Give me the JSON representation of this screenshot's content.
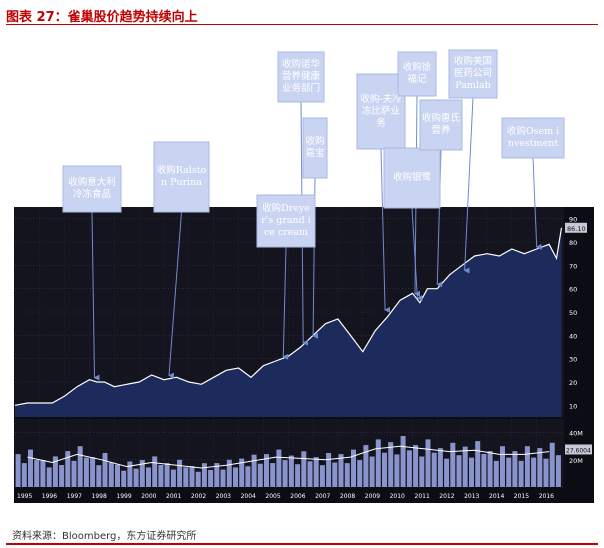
{
  "title": "图表 27：雀巢股价趋势持续向上",
  "source": "资料来源：Bloomberg，东方证券研究所",
  "colors": {
    "title": "#c00000",
    "plot_bg": "#14141e",
    "area": "#1c2a5c",
    "price_line": "#ffffff",
    "volume_bar": "#8a94cc",
    "callout_bg": "#c9d4f2",
    "arrow": "#6f8bd0"
  },
  "chart_data": {
    "type": "area",
    "x_ticks": [
      "1995",
      "1996",
      "1997",
      "1998",
      "1999",
      "2000",
      "2001",
      "2002",
      "2003",
      "2004",
      "2005",
      "2006",
      "2007",
      "2008",
      "2009",
      "2010",
      "2011",
      "2012",
      "2013",
      "2014",
      "2015",
      "2016"
    ],
    "price_axis": {
      "ticks": [
        10,
        20,
        30,
        40,
        50,
        60,
        70,
        80,
        90
      ],
      "ylim": [
        5,
        95
      ]
    },
    "last_price_label": "86.10",
    "volume_axis": {
      "ticks": [
        "40M",
        "20M"
      ],
      "ylim": [
        0,
        50
      ],
      "last_label": "27.6004"
    },
    "price_series": {
      "x": [
        1995.0,
        1995.5,
        1996.0,
        1996.5,
        1997.0,
        1997.5,
        1998.0,
        1998.3,
        1998.6,
        1999.0,
        1999.5,
        2000.0,
        2000.5,
        2001.0,
        2001.5,
        2002.0,
        2002.5,
        2003.0,
        2003.5,
        2004.0,
        2004.5,
        2005.0,
        2005.5,
        2006.0,
        2006.5,
        2007.0,
        2007.5,
        2008.0,
        2008.5,
        2009.0,
        2009.5,
        2010.0,
        2010.5,
        2011.0,
        2011.3,
        2011.6,
        2012.0,
        2012.5,
        2013.0,
        2013.5,
        2014.0,
        2014.5,
        2015.0,
        2015.5,
        2016.0,
        2016.5,
        2016.8,
        2017.0
      ],
      "y": [
        10,
        11,
        11,
        11,
        14,
        18,
        21,
        20,
        20,
        18,
        19,
        20,
        23,
        21,
        22,
        20,
        19,
        22,
        25,
        26,
        22,
        27,
        29,
        31,
        35,
        40,
        45,
        47,
        40,
        33,
        42,
        48,
        55,
        58,
        54,
        60,
        60,
        66,
        70,
        74,
        75,
        74,
        77,
        75,
        77,
        79,
        73,
        86.1
      ]
    },
    "volume_series": {
      "x": [
        1995,
        1996,
        1997,
        1998,
        1999,
        2000,
        2001,
        2002,
        2003,
        2004,
        2005,
        2006,
        2007,
        2008,
        2009,
        2010,
        2011,
        2012,
        2013,
        2014,
        2015,
        2016
      ],
      "y": [
        22,
        18,
        24,
        20,
        15,
        18,
        16,
        14,
        16,
        19,
        22,
        21,
        20,
        22,
        28,
        30,
        28,
        26,
        27,
        24,
        24,
        26
      ]
    }
  },
  "annotations": [
    {
      "label": "收购意大利冷冻食品",
      "year": 1998.2,
      "price": 21
    },
    {
      "label": "收购Ralston Purina",
      "year": 2001.2,
      "price": 22
    },
    {
      "label": "收购Dreyer's grand ice cream",
      "year": 2005.8,
      "price": 30
    },
    {
      "label": "收购诺华营养健康业务部门",
      "year": 2006.6,
      "price": 36
    },
    {
      "label": "收购嘉宝",
      "year": 2007.0,
      "price": 39
    },
    {
      "label": "收购-夫冷冻比萨业务",
      "year": 2009.9,
      "price": 50
    },
    {
      "label": "收购徐福记",
      "year": 2011.1,
      "price": 57
    },
    {
      "label": "收购银鹭",
      "year": 2011.2,
      "price": 55
    },
    {
      "label": "收购惠氏营养",
      "year": 2012.0,
      "price": 61
    },
    {
      "label": "收购美国医药公司Pamlab",
      "year": 2013.1,
      "price": 67
    },
    {
      "label": "收购Osem investment",
      "year": 2016.0,
      "price": 77
    }
  ]
}
